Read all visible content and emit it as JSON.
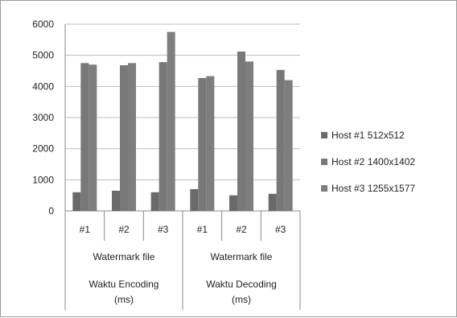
{
  "chart_data": {
    "type": "bar",
    "title": "",
    "xlabel": "",
    "ylabel": "",
    "ylim": [
      0,
      6000
    ],
    "yticks": [
      "6000",
      "5000",
      "4000",
      "3000",
      "2000",
      "1000",
      "0"
    ],
    "grid": true,
    "legend_position": "right",
    "colors": [
      "#6a6a6a",
      "#787878",
      "#7e7e7e"
    ],
    "categories": [
      "#1",
      "#2",
      "#3",
      "#1",
      "#2",
      "#3"
    ],
    "groups_level2": [
      "Watermark file",
      "Watermark file"
    ],
    "groups_level3": [
      "Waktu Encoding (ms)",
      "Waktu Decoding (ms)"
    ],
    "group_lines": [
      [
        "Waktu Encoding",
        "(ms)"
      ],
      [
        "Waktu Decoding",
        "(ms)"
      ]
    ],
    "series": [
      {
        "name": "Host #1 512x512",
        "values": [
          600,
          650,
          600,
          700,
          500,
          550
        ]
      },
      {
        "name": "Host #2 1400x1402",
        "values": [
          4750,
          4680,
          4780,
          4270,
          5120,
          4530
        ]
      },
      {
        "name": "Host #3 1255x1577",
        "values": [
          4700,
          4750,
          5750,
          4330,
          4800,
          4200
        ]
      }
    ]
  }
}
